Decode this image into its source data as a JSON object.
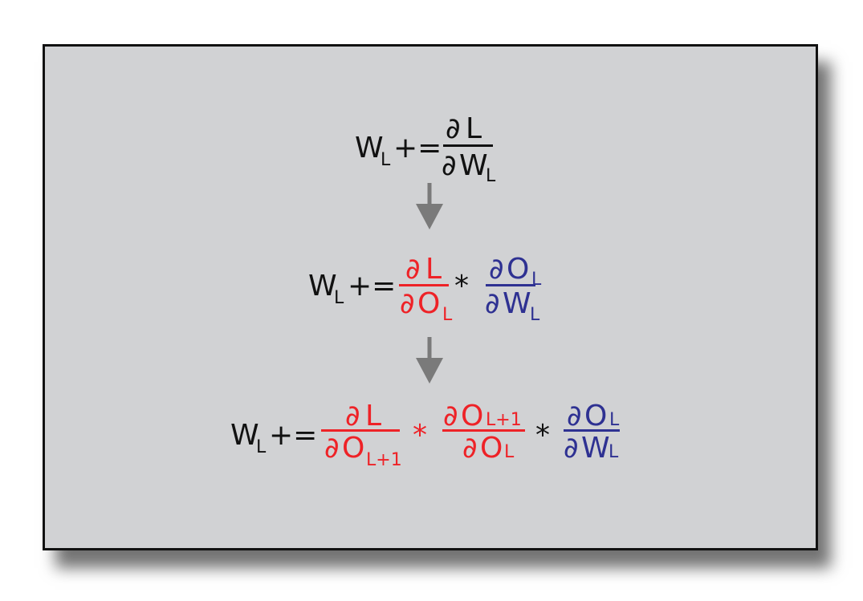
{
  "colors": {
    "background": "#d1d2d4",
    "text": "#111111",
    "red": "#ee2227",
    "blue": "#2e3192",
    "arrow": "#7a7a7a"
  },
  "glyphs": {
    "W": "W",
    "L": "L",
    "O": "O",
    "op": "+=",
    "partial": "∂",
    "times": "*",
    "l_plus_1": "L+1"
  },
  "equations": [
    "W_L += ∂L/∂W_L",
    "W_L += ∂L/∂O_L * ∂O_L/∂W_L",
    "W_L += ∂L/∂O_(L+1) * ∂O_(L+1)/∂O_L * ∂O_L/∂W_L"
  ]
}
